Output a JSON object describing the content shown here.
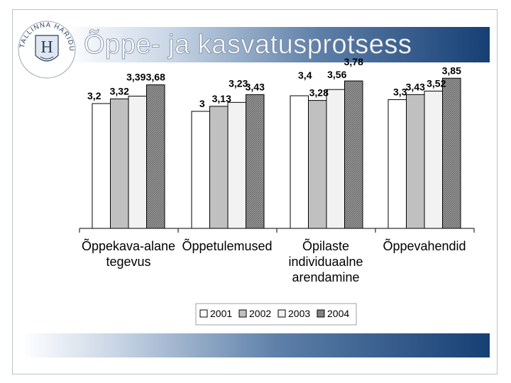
{
  "slide": {
    "title": "Õppe- ja kasvatusprotsess",
    "logo_text": "TALLINNA HARIDUSAMET",
    "logo_monogram": "H"
  },
  "colors": {
    "accent_dark": "#163f74",
    "series_2001": "#ffffff",
    "series_2002": "#c0c0c0",
    "series_2003": "#f2f2f2",
    "series_2004": "#8c8c8c"
  },
  "chart_data": {
    "type": "bar",
    "categories": [
      [
        "Õppekava-alane",
        "tegevus"
      ],
      [
        "Õppetulemused"
      ],
      [
        "Õpilaste",
        "individuaalne",
        "arendamine"
      ],
      [
        "Õppevahendid"
      ]
    ],
    "series": [
      {
        "name": "2001",
        "values": [
          3.2,
          3.0,
          3.4,
          3.3
        ],
        "labels": [
          "3,2",
          "3",
          "3,4",
          "3,3"
        ]
      },
      {
        "name": "2002",
        "values": [
          3.32,
          3.13,
          3.28,
          3.43
        ],
        "labels": [
          "3,32",
          "3,13",
          "3,28",
          "3,43"
        ]
      },
      {
        "name": "2003",
        "values": [
          3.39,
          3.23,
          3.56,
          3.52
        ],
        "labels": [
          "3,39",
          "3,23",
          "3,56",
          "3,52"
        ]
      },
      {
        "name": "2004",
        "values": [
          3.68,
          3.43,
          3.78,
          3.85
        ],
        "labels": [
          "3,68",
          "3,43",
          "3,78",
          "3,85"
        ]
      }
    ],
    "ylim": [
      0,
      4.6
    ],
    "grid": false,
    "legend_position": "bottom"
  }
}
